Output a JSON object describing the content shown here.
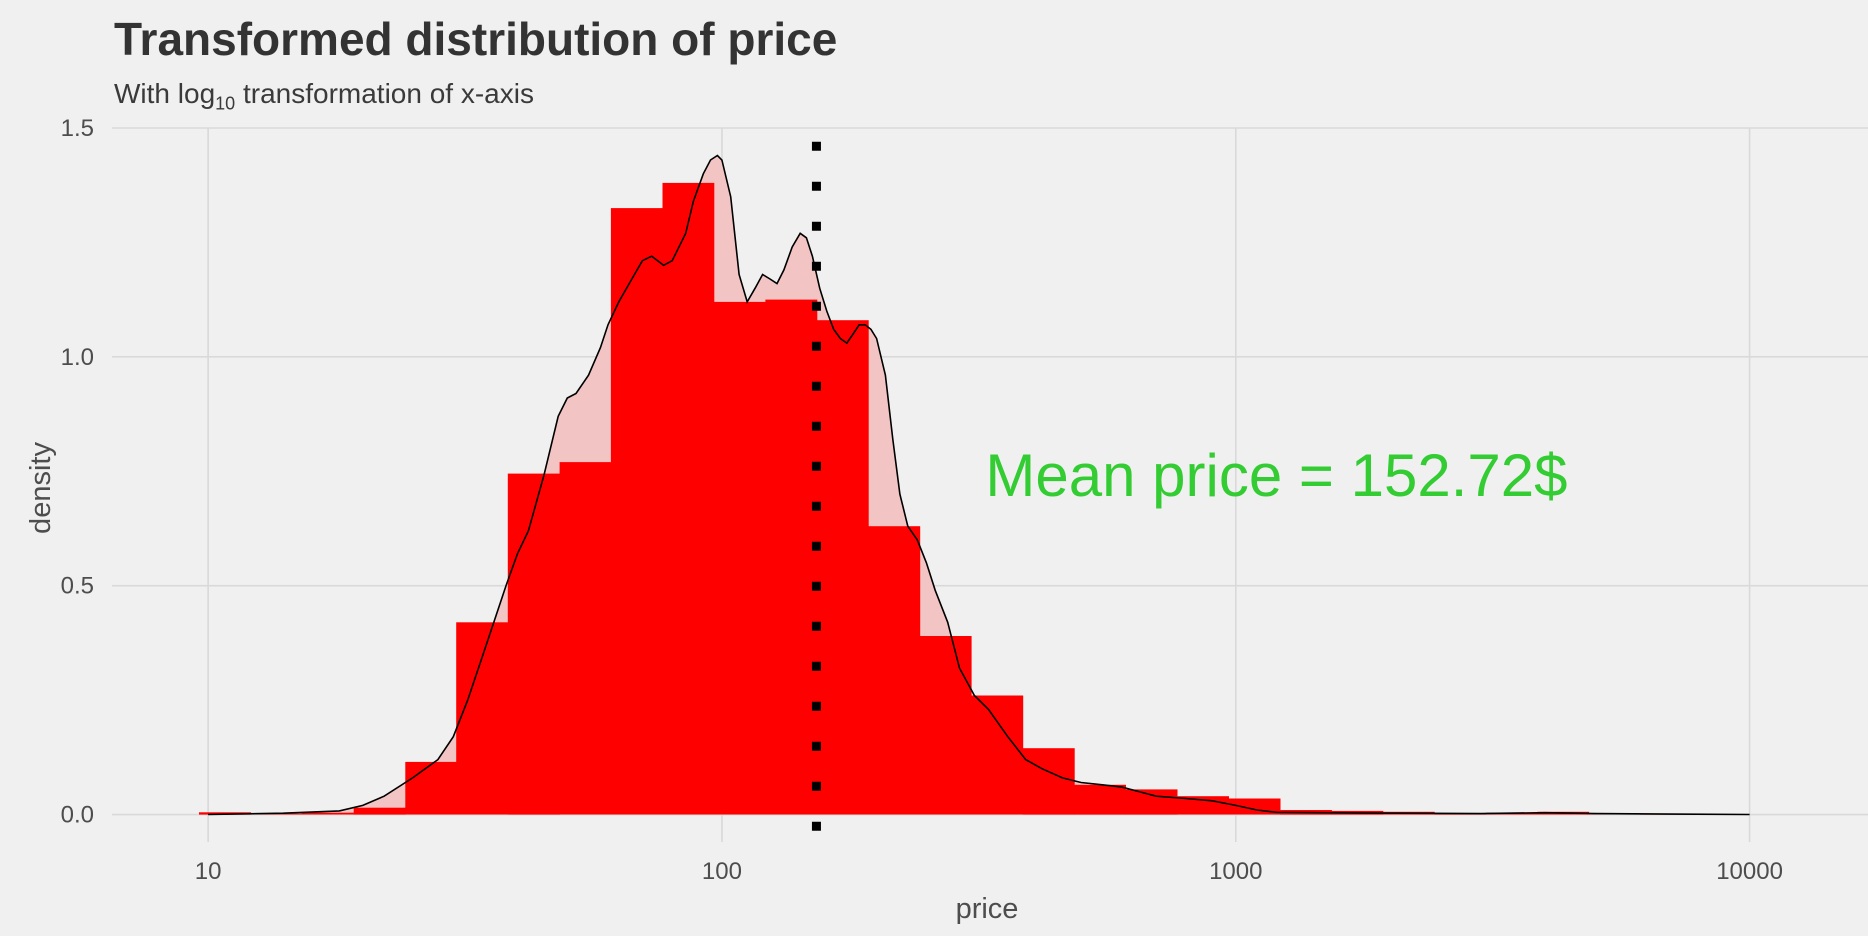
{
  "chart_data": {
    "type": "histogram",
    "title": "Transformed distribution of price",
    "subtitle": {
      "prefix": "With log",
      "sub": "10",
      "suffix": " transformation of x-axis"
    },
    "xlabel": "price",
    "ylabel": "density",
    "x_scale": "log10",
    "xlim": [
      6.5,
      17000
    ],
    "ylim": [
      -0.06,
      1.5
    ],
    "x_ticks": [
      {
        "value": 10,
        "label": "10"
      },
      {
        "value": 100,
        "label": "100"
      },
      {
        "value": 1000,
        "label": "1000"
      },
      {
        "value": 10000,
        "label": "10000"
      }
    ],
    "y_ticks": [
      {
        "value": 0.0,
        "label": "0.0"
      },
      {
        "value": 0.5,
        "label": "0.5"
      },
      {
        "value": 1.0,
        "label": "1.0"
      },
      {
        "value": 1.5,
        "label": "1.5"
      }
    ],
    "grid": true,
    "bar_color": "#ff0000",
    "density_fill": "#f2c4c4",
    "density_line_color": "#000000",
    "mean_line_color": "#000000",
    "bins": [
      {
        "x0": 9.6,
        "x1": 12.1,
        "density": 0.005
      },
      {
        "x0": 12.1,
        "x1": 15.2,
        "density": 0.002
      },
      {
        "x0": 15.2,
        "x1": 19.2,
        "density": 0.004
      },
      {
        "x0": 19.2,
        "x1": 24.2,
        "density": 0.015
      },
      {
        "x0": 24.2,
        "x1": 30.4,
        "density": 0.115
      },
      {
        "x0": 30.4,
        "x1": 38.3,
        "density": 0.42
      },
      {
        "x0": 38.3,
        "x1": 48.3,
        "density": 0.745
      },
      {
        "x0": 48.3,
        "x1": 60.8,
        "density": 0.77
      },
      {
        "x0": 60.8,
        "x1": 76.6,
        "density": 1.325
      },
      {
        "x0": 76.6,
        "x1": 96.4,
        "density": 1.38
      },
      {
        "x0": 96.4,
        "x1": 121.5,
        "density": 1.12
      },
      {
        "x0": 121.5,
        "x1": 153,
        "density": 1.125
      },
      {
        "x0": 153,
        "x1": 192.6,
        "density": 1.08
      },
      {
        "x0": 192.6,
        "x1": 242.6,
        "density": 0.63
      },
      {
        "x0": 242.6,
        "x1": 305.5,
        "density": 0.39
      },
      {
        "x0": 305.5,
        "x1": 384.8,
        "density": 0.26
      },
      {
        "x0": 384.8,
        "x1": 484.6,
        "density": 0.145
      },
      {
        "x0": 484.6,
        "x1": 610.2,
        "density": 0.065
      },
      {
        "x0": 610.2,
        "x1": 768.5,
        "density": 0.055
      },
      {
        "x0": 768.5,
        "x1": 967.8,
        "density": 0.04
      },
      {
        "x0": 967.8,
        "x1": 1219,
        "density": 0.035
      },
      {
        "x0": 1219,
        "x1": 1535,
        "density": 0.01
      },
      {
        "x0": 1535,
        "x1": 1933,
        "density": 0.008
      },
      {
        "x0": 1933,
        "x1": 2434,
        "density": 0.006
      },
      {
        "x0": 2434,
        "x1": 3066,
        "density": 0.003
      },
      {
        "x0": 3066,
        "x1": 3861,
        "density": 0.004
      },
      {
        "x0": 3861,
        "x1": 4862,
        "density": 0.006
      },
      {
        "x0": 4862,
        "x1": 6123,
        "density": 0.002
      },
      {
        "x0": 6123,
        "x1": 7711,
        "density": 0.001
      },
      {
        "x0": 7711,
        "x1": 9711,
        "density": 0.001
      }
    ],
    "density_curve": {
      "x": [
        10,
        14,
        18,
        20,
        22,
        25,
        28,
        30,
        32,
        35,
        38,
        40,
        42,
        45,
        48,
        50,
        52,
        55,
        58,
        60,
        63,
        66,
        70,
        73,
        77,
        80,
        85,
        88,
        92,
        95,
        98,
        100,
        104,
        108,
        112,
        116,
        120,
        124,
        128,
        132,
        137,
        142,
        146,
        150,
        155,
        160,
        165,
        170,
        175,
        180,
        185,
        190,
        195,
        200,
        208,
        215,
        222,
        230,
        240,
        250,
        260,
        275,
        290,
        310,
        330,
        360,
        390,
        420,
        460,
        500,
        550,
        600,
        700,
        800,
        900,
        1000,
        1100,
        1200,
        1500,
        2000,
        3000,
        4000,
        5000,
        7000,
        10000
      ],
      "y": [
        0.0,
        0.003,
        0.008,
        0.02,
        0.04,
        0.08,
        0.12,
        0.17,
        0.25,
        0.38,
        0.5,
        0.57,
        0.62,
        0.74,
        0.87,
        0.91,
        0.92,
        0.96,
        1.02,
        1.07,
        1.12,
        1.16,
        1.21,
        1.22,
        1.2,
        1.21,
        1.27,
        1.34,
        1.4,
        1.43,
        1.44,
        1.43,
        1.35,
        1.18,
        1.12,
        1.15,
        1.18,
        1.17,
        1.16,
        1.19,
        1.24,
        1.27,
        1.26,
        1.22,
        1.15,
        1.1,
        1.06,
        1.04,
        1.03,
        1.05,
        1.07,
        1.07,
        1.06,
        1.04,
        0.96,
        0.82,
        0.7,
        0.63,
        0.6,
        0.55,
        0.49,
        0.42,
        0.32,
        0.26,
        0.23,
        0.17,
        0.12,
        0.1,
        0.08,
        0.07,
        0.065,
        0.06,
        0.04,
        0.035,
        0.03,
        0.02,
        0.01,
        0.005,
        0.004,
        0.003,
        0.002,
        0.004,
        0.002,
        0.001,
        0.0
      ]
    },
    "mean_price": 152.72,
    "annotation": {
      "text": "Mean price =  152.72$",
      "x": 1200,
      "y": 0.74,
      "color": "#33cc33"
    }
  }
}
